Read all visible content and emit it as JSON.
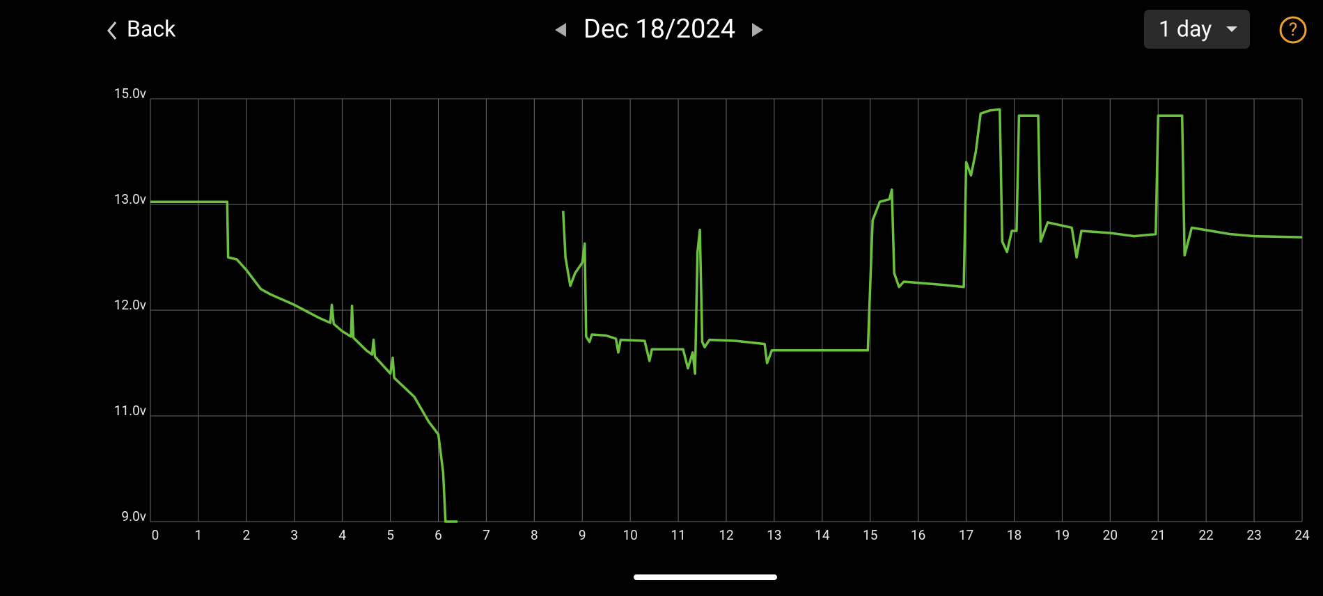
{
  "header": {
    "back": "Back",
    "date": "Dec 18/2024",
    "range": "1 day",
    "help": "?"
  },
  "chart_data": {
    "type": "line",
    "color": "#6cc23f",
    "grid": true,
    "xlim": [
      0,
      24
    ],
    "xticks": [
      0,
      1,
      2,
      3,
      4,
      5,
      6,
      7,
      8,
      9,
      10,
      11,
      12,
      13,
      14,
      15,
      16,
      17,
      18,
      19,
      20,
      21,
      22,
      23,
      24
    ],
    "ylim": [
      9,
      15
    ],
    "yticks": [
      {
        "value": 9,
        "label": "9.0v"
      },
      {
        "value": 11,
        "label": "11.0v"
      },
      {
        "value": 12,
        "label": "12.0v"
      },
      {
        "value": 13,
        "label": "13.0v"
      },
      {
        "value": 15,
        "label": "15.0v"
      }
    ],
    "x": [
      0,
      1.6,
      1.62,
      1.8,
      2,
      2.3,
      2.5,
      3,
      3.5,
      3.75,
      3.78,
      3.82,
      4.0,
      4.18,
      4.2,
      4.23,
      4.5,
      4.62,
      4.65,
      4.68,
      5,
      5.05,
      5.08,
      5.5,
      5.8,
      6.0,
      6.1,
      6.15,
      6.4,
      7.5,
      8.6,
      8.65,
      8.75,
      8.85,
      9.0,
      9.05,
      9.08,
      9.15,
      9.2,
      9.5,
      9.7,
      9.75,
      9.8,
      10.3,
      10.4,
      10.45,
      11.1,
      11.2,
      11.3,
      11.35,
      11.4,
      11.45,
      11.5,
      11.55,
      11.65,
      12.2,
      12.8,
      12.85,
      12.95,
      14.0,
      14.95,
      15.05,
      15.2,
      15.4,
      15.45,
      15.5,
      15.6,
      15.7,
      16.5,
      16.95,
      17.0,
      17.1,
      17.2,
      17.3,
      17.5,
      17.7,
      17.75,
      17.85,
      17.95,
      18.05,
      18.1,
      18.5,
      18.55,
      18.7,
      19.2,
      19.3,
      19.4,
      20.0,
      20.5,
      20.95,
      21.0,
      21.5,
      21.55,
      21.7,
      22.5,
      23.0,
      24
    ],
    "values": [
      13.05,
      13.05,
      12.5,
      12.48,
      12.38,
      12.2,
      12.15,
      12.05,
      11.93,
      11.88,
      12.05,
      11.87,
      11.8,
      11.75,
      12.04,
      11.74,
      11.62,
      11.58,
      11.72,
      11.56,
      11.4,
      11.55,
      11.36,
      11.18,
      10.89,
      10.65,
      9.93,
      9.0,
      9.0,
      null,
      12.94,
      12.5,
      12.23,
      12.35,
      12.45,
      12.63,
      11.75,
      11.7,
      11.77,
      11.76,
      11.73,
      11.6,
      11.72,
      11.71,
      11.52,
      11.63,
      11.63,
      11.45,
      11.6,
      11.4,
      12.55,
      12.76,
      11.7,
      11.65,
      11.72,
      11.71,
      11.68,
      11.5,
      11.62,
      11.62,
      11.62,
      12.85,
      13.05,
      13.1,
      13.28,
      12.35,
      12.22,
      12.27,
      12.24,
      12.22,
      13.8,
      13.55,
      14.0,
      14.72,
      14.78,
      14.8,
      12.65,
      12.55,
      12.75,
      12.75,
      14.68,
      14.68,
      12.65,
      12.83,
      12.78,
      12.5,
      12.75,
      12.73,
      12.7,
      12.72,
      14.68,
      14.68,
      12.52,
      12.78,
      12.72,
      12.7,
      12.69
    ]
  }
}
